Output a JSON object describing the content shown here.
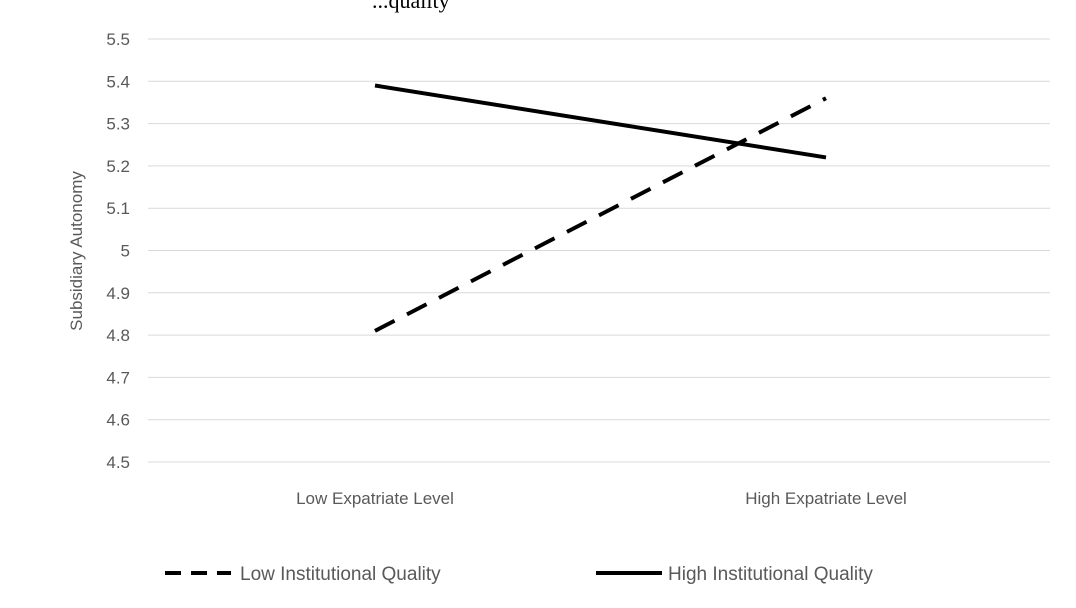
{
  "chart_data": {
    "type": "line",
    "title": "...quality",
    "xlabel": "",
    "ylabel": "Subsidiary Autonomy",
    "categories": [
      "Low Expatriate Level",
      "High Expatriate Level"
    ],
    "ylim": [
      4.5,
      5.5
    ],
    "yticks": [
      "5.5",
      "5.4",
      "5.3",
      "5.2",
      "5.1",
      "5",
      "4.9",
      "4.8",
      "4.7",
      "4.6",
      "4.5"
    ],
    "grid": true,
    "legend_position": "bottom",
    "series": [
      {
        "name": "Low Institutional Quality",
        "values": [
          4.81,
          5.36
        ],
        "style": "dashed",
        "color": "#000000"
      },
      {
        "name": "High Institutional Quality",
        "values": [
          5.39,
          5.22
        ],
        "style": "solid",
        "color": "#000000"
      }
    ]
  }
}
